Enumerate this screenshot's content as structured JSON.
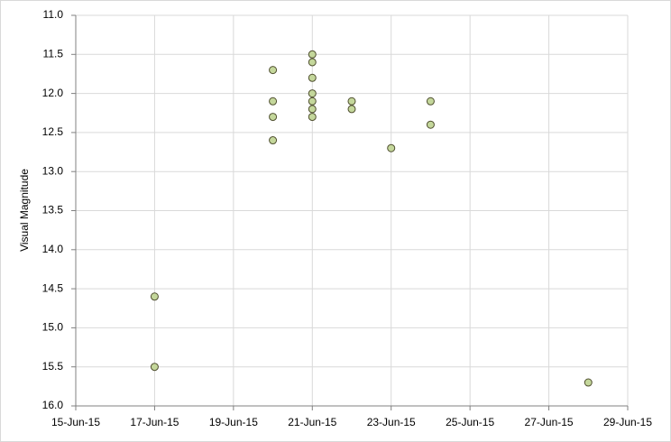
{
  "chart_data": {
    "type": "scatter",
    "y_label": "Visual Magnitude",
    "y_inverted": true,
    "grid": true,
    "marker_color": "#c4d79b",
    "marker_edge": "#4f4f2f",
    "x": [
      "2015-06-17",
      "2015-06-17",
      "2015-06-20",
      "2015-06-20",
      "2015-06-20",
      "2015-06-20",
      "2015-06-21",
      "2015-06-21",
      "2015-06-21",
      "2015-06-21",
      "2015-06-21",
      "2015-06-21",
      "2015-06-21",
      "2015-06-22",
      "2015-06-22",
      "2015-06-23",
      "2015-06-24",
      "2015-06-24",
      "2015-06-28"
    ],
    "values": [
      14.6,
      15.5,
      11.7,
      12.1,
      12.3,
      12.6,
      11.5,
      11.6,
      11.8,
      12.0,
      12.1,
      12.2,
      12.3,
      12.1,
      12.2,
      12.7,
      12.1,
      12.4,
      15.7
    ],
    "xlim": [
      "2015-06-15",
      "2015-06-29"
    ],
    "xticks": [
      {
        "value": "2015-06-15",
        "label": "15-Jun-15"
      },
      {
        "value": "2015-06-17",
        "label": "17-Jun-15"
      },
      {
        "value": "2015-06-19",
        "label": "19-Jun-15"
      },
      {
        "value": "2015-06-21",
        "label": "21-Jun-15"
      },
      {
        "value": "2015-06-23",
        "label": "23-Jun-15"
      },
      {
        "value": "2015-06-25",
        "label": "25-Jun-15"
      },
      {
        "value": "2015-06-27",
        "label": "27-Jun-15"
      },
      {
        "value": "2015-06-29",
        "label": "29-Jun-15"
      }
    ],
    "ylim": [
      11,
      16
    ],
    "yticks": [
      {
        "value": 11,
        "label": "11.0"
      },
      11.5,
      {
        "value": 12,
        "label": "12.0"
      },
      12.5,
      {
        "value": 13,
        "label": "13.0"
      },
      13.5,
      {
        "value": 14,
        "label": "14.0"
      },
      14.5,
      {
        "value": 15,
        "label": "15.0"
      },
      15.5,
      {
        "value": 16,
        "label": "16.0"
      }
    ]
  }
}
